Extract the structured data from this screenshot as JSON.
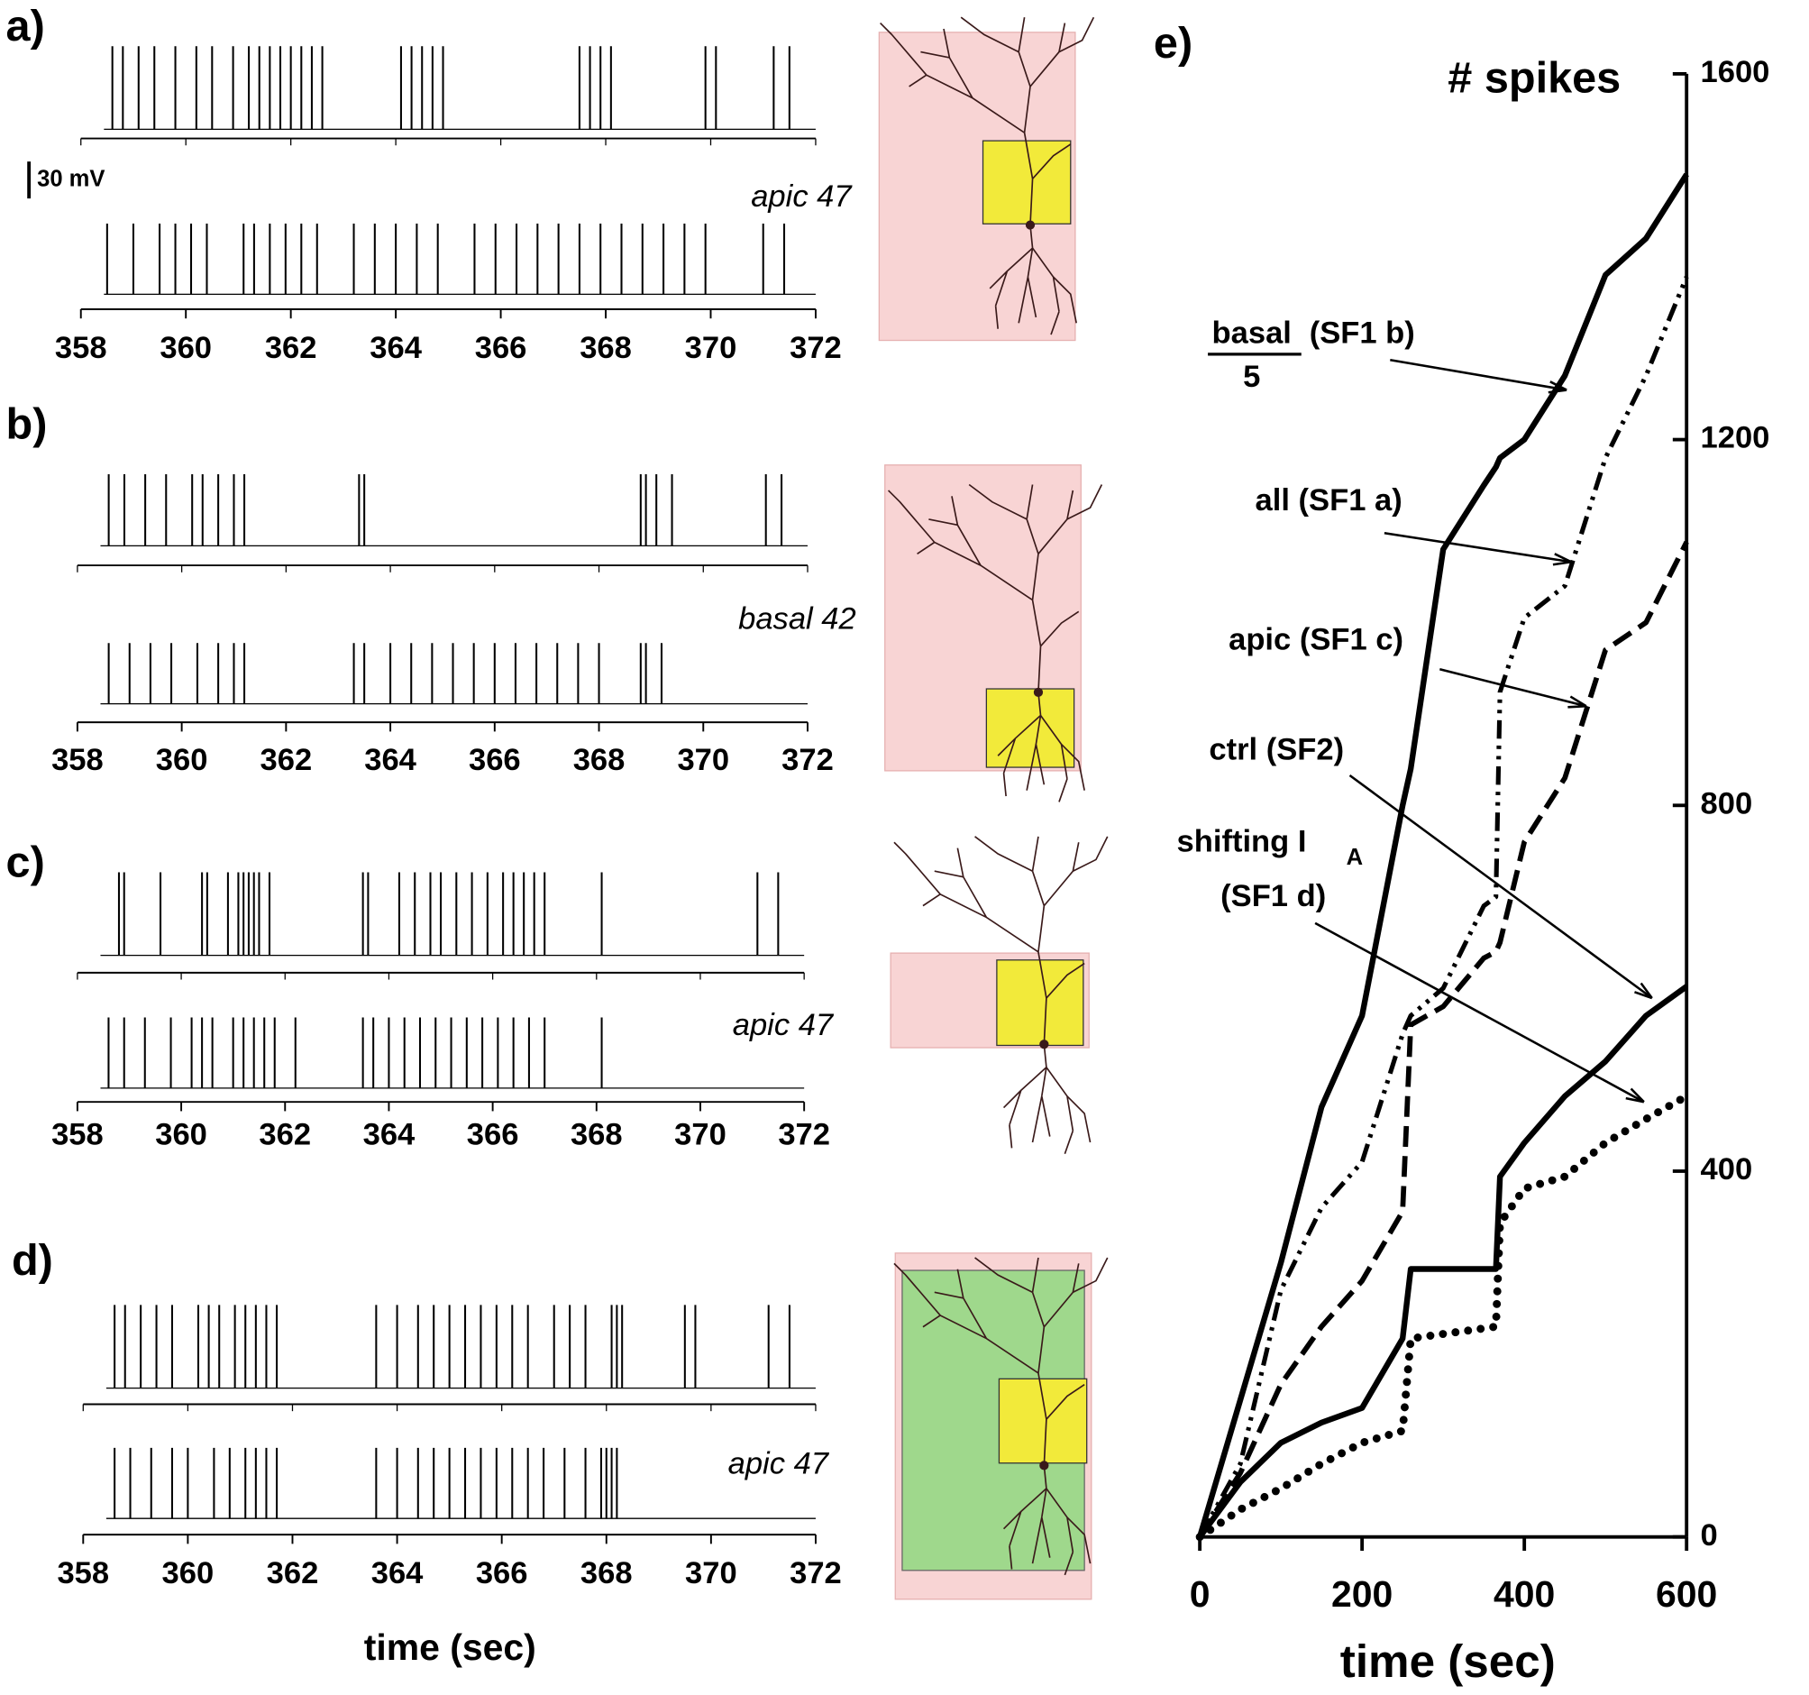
{
  "chart_data": [
    {
      "type": "trace",
      "title": "a)",
      "annotation": "apic 47",
      "scale_label": "30 mV",
      "color": "#000000",
      "xlim": [
        358,
        372
      ],
      "xticks": [
        358,
        360,
        362,
        364,
        366,
        368,
        370,
        372
      ],
      "series": [
        {
          "x": [
            358.6,
            358.8,
            359.1,
            359.4,
            359.8,
            360.2,
            360.5,
            360.9,
            361.2,
            361.4,
            361.6,
            361.8,
            362.0,
            362.2,
            362.4,
            362.6,
            364.1,
            364.3,
            364.5,
            364.7,
            364.9,
            367.5,
            367.7,
            367.9,
            368.1,
            369.9,
            370.1,
            371.2,
            371.5
          ]
        },
        {
          "x": [
            358.5,
            359.0,
            359.5,
            359.8,
            360.1,
            360.4,
            361.1,
            361.3,
            361.6,
            361.9,
            362.2,
            362.5,
            363.2,
            363.6,
            364.0,
            364.4,
            364.8,
            365.5,
            365.9,
            366.3,
            366.7,
            367.1,
            367.5,
            367.9,
            368.3,
            368.7,
            369.1,
            369.5,
            369.9,
            371.0,
            371.4
          ]
        }
      ]
    },
    {
      "type": "trace",
      "title": "b)",
      "annotation": "basal 42",
      "color": "#000000",
      "xlim": [
        358,
        372
      ],
      "xticks": [
        358,
        360,
        362,
        364,
        366,
        368,
        370,
        372
      ],
      "series": [
        {
          "x": [
            358.6,
            358.9,
            359.3,
            359.7,
            360.2,
            360.4,
            360.7,
            361.0,
            361.2,
            363.4,
            363.5,
            368.8,
            368.9,
            369.1,
            369.4,
            371.2,
            371.5
          ]
        },
        {
          "x": [
            358.6,
            359.0,
            359.4,
            359.8,
            360.3,
            360.7,
            361.0,
            361.2,
            363.3,
            363.5,
            364.0,
            364.4,
            364.8,
            365.2,
            365.6,
            366.0,
            366.4,
            366.8,
            367.2,
            367.6,
            368.0,
            368.8,
            368.9,
            369.2
          ]
        }
      ]
    },
    {
      "type": "trace",
      "title": "c)",
      "annotation": "apic 47",
      "color": "#000000",
      "xlim": [
        358,
        372
      ],
      "xticks": [
        358,
        360,
        362,
        364,
        366,
        368,
        370,
        372
      ],
      "series": [
        {
          "x": [
            358.8,
            358.9,
            359.6,
            360.4,
            360.5,
            360.9,
            361.1,
            361.2,
            361.3,
            361.4,
            361.5,
            361.7,
            363.5,
            363.6,
            364.2,
            364.5,
            364.8,
            365.0,
            365.3,
            365.6,
            365.9,
            366.2,
            366.4,
            366.6,
            366.8,
            367.0,
            368.1,
            371.1,
            371.5
          ]
        },
        {
          "x": [
            358.6,
            358.9,
            359.3,
            359.8,
            360.2,
            360.4,
            360.6,
            361.0,
            361.2,
            361.4,
            361.6,
            361.8,
            362.2,
            363.5,
            363.7,
            364.0,
            364.3,
            364.6,
            364.9,
            365.2,
            365.5,
            365.8,
            366.1,
            366.4,
            366.7,
            367.0,
            368.1
          ]
        }
      ]
    },
    {
      "type": "trace",
      "title": "d)",
      "annotation": "apic 47",
      "xlabel": "time (sec)",
      "color": "#000000",
      "xlim": [
        358,
        372
      ],
      "xticks": [
        358,
        360,
        362,
        364,
        366,
        368,
        370,
        372
      ],
      "series": [
        {
          "x": [
            358.6,
            358.8,
            359.1,
            359.4,
            359.7,
            360.2,
            360.4,
            360.6,
            360.9,
            361.1,
            361.3,
            361.5,
            361.7,
            363.6,
            364.0,
            364.4,
            364.7,
            365.0,
            365.3,
            365.6,
            365.9,
            366.2,
            366.5,
            367.0,
            367.3,
            367.6,
            368.1,
            368.2,
            368.3,
            369.5,
            369.7,
            371.1,
            371.5
          ]
        },
        {
          "x": [
            358.6,
            358.9,
            359.3,
            359.7,
            360.0,
            360.5,
            360.8,
            361.1,
            361.3,
            361.5,
            361.7,
            363.6,
            364.0,
            364.4,
            364.7,
            365.0,
            365.3,
            365.6,
            365.9,
            366.2,
            366.5,
            366.8,
            367.2,
            367.6,
            367.9,
            368.0,
            368.1,
            368.2
          ]
        }
      ]
    },
    {
      "type": "line",
      "title": "e)",
      "ylabel": "# spikes",
      "xlabel": "time (sec)",
      "xlim": [
        0,
        600
      ],
      "xticks": [
        0,
        200,
        400,
        600
      ],
      "ylim": [
        0,
        1600
      ],
      "yticks": [
        0,
        400,
        800,
        1200,
        1600
      ],
      "x": [
        0,
        50,
        100,
        150,
        200,
        250,
        260,
        300,
        350,
        365,
        370,
        400,
        450,
        500,
        550,
        600
      ],
      "series": [
        {
          "name": "(SF1 b)",
          "name_numerator": "basal",
          "name_denominator": "5",
          "color": "#000000",
          "style": "solid-thick",
          "values": [
            0,
            150,
            300,
            470,
            570,
            800,
            840,
            1080,
            1150,
            1170,
            1180,
            1200,
            1270,
            1380,
            1420,
            1490
          ]
        },
        {
          "name": "all (SF1 a)",
          "color": "#000000",
          "style": "dashdotdot",
          "values": [
            0,
            80,
            270,
            360,
            410,
            550,
            570,
            600,
            690,
            700,
            924,
            1005,
            1040,
            1180,
            1270,
            1378
          ]
        },
        {
          "name": "apic (SF1 c)",
          "color": "#000000",
          "style": "dashed",
          "values": [
            0,
            70,
            167,
            230,
            280,
            356,
            560,
            580,
            633,
            640,
            650,
            760,
            830,
            970,
            1000,
            1088
          ]
        },
        {
          "name": "ctrl (SF2)",
          "color": "#000000",
          "style": "solid",
          "values": [
            0,
            60,
            103,
            125,
            141,
            217,
            293,
            293,
            293,
            293,
            394,
            431,
            482,
            520,
            570,
            602
          ]
        },
        {
          "name": "shifting I",
          "name_subscript": "A",
          "name_second_line": "(SF1 d)",
          "color": "#000000",
          "style": "dotted",
          "values": [
            0,
            30,
            53,
            80,
            103,
            116,
            217,
            222,
            228,
            230,
            343,
            381,
            394,
            431,
            457,
            482
          ]
        }
      ]
    }
  ]
}
